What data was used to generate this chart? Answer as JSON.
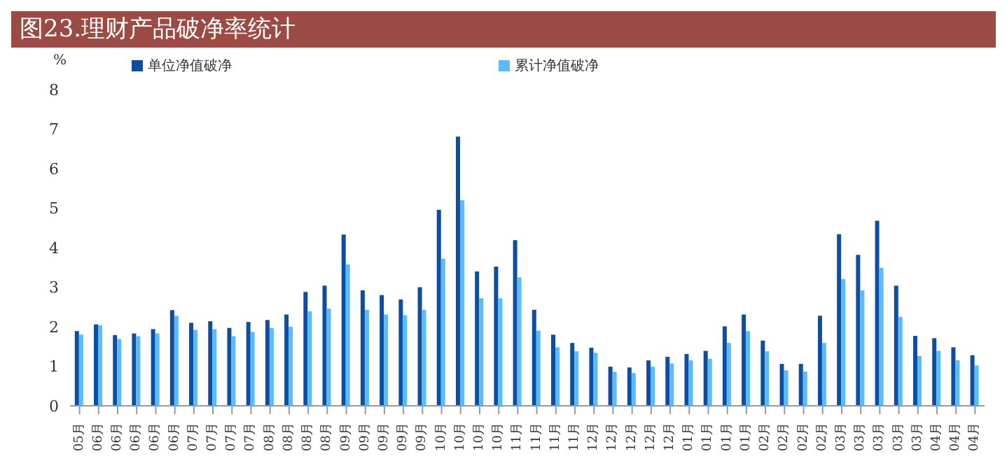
{
  "chart_data": {
    "type": "bar",
    "title": "图23.理财产品破净率统计",
    "ylabel": "%",
    "categories": [
      "05月",
      "06月",
      "06月",
      "06月",
      "06月",
      "06月",
      "07月",
      "07月",
      "07月",
      "07月",
      "08月",
      "08月",
      "08月",
      "08月",
      "09月",
      "09月",
      "09月",
      "09月",
      "09月",
      "10月",
      "10月",
      "10月",
      "10月",
      "11月",
      "11月",
      "11月",
      "11月",
      "12月",
      "12月",
      "12月",
      "12月",
      "12月",
      "01月",
      "01月",
      "01月",
      "01月",
      "02月",
      "02月",
      "02月",
      "02月",
      "03月",
      "03月",
      "03月",
      "03月",
      "03月",
      "04月",
      "04月",
      "04月"
    ],
    "series": [
      {
        "name": "单位净值破净",
        "color": "#0b4ea2",
        "values": [
          1.89,
          2.06,
          1.79,
          1.83,
          1.94,
          2.42,
          2.1,
          2.14,
          1.97,
          2.12,
          2.17,
          2.31,
          2.88,
          3.04,
          4.33,
          2.92,
          2.8,
          2.69,
          3.0,
          4.96,
          6.81,
          3.4,
          3.52,
          4.19,
          2.43,
          1.8,
          1.59,
          1.47,
          0.99,
          0.97,
          1.15,
          1.24,
          1.31,
          1.39,
          2.01,
          2.31,
          1.65,
          1.06,
          1.06,
          2.28,
          4.34,
          3.82,
          4.68,
          3.04,
          1.77,
          1.71,
          1.48,
          1.28
        ]
      },
      {
        "name": "累计净值破净",
        "color": "#5bbcf5",
        "values": [
          1.8,
          2.04,
          1.69,
          1.76,
          1.83,
          2.28,
          1.92,
          1.94,
          1.76,
          1.87,
          1.97,
          2.0,
          2.39,
          2.46,
          3.58,
          2.43,
          2.31,
          2.29,
          2.43,
          3.72,
          5.2,
          2.72,
          2.72,
          3.25,
          1.9,
          1.48,
          1.38,
          1.34,
          0.86,
          0.83,
          0.99,
          1.07,
          1.15,
          1.19,
          1.59,
          1.89,
          1.38,
          0.9,
          0.87,
          1.59,
          3.21,
          2.92,
          3.49,
          2.25,
          1.26,
          1.39,
          1.15,
          1.02
        ]
      }
    ],
    "ylim": [
      0,
      8
    ],
    "yticks": [
      0,
      1,
      2,
      3,
      4,
      5,
      6,
      7,
      8
    ],
    "legend": "top"
  }
}
